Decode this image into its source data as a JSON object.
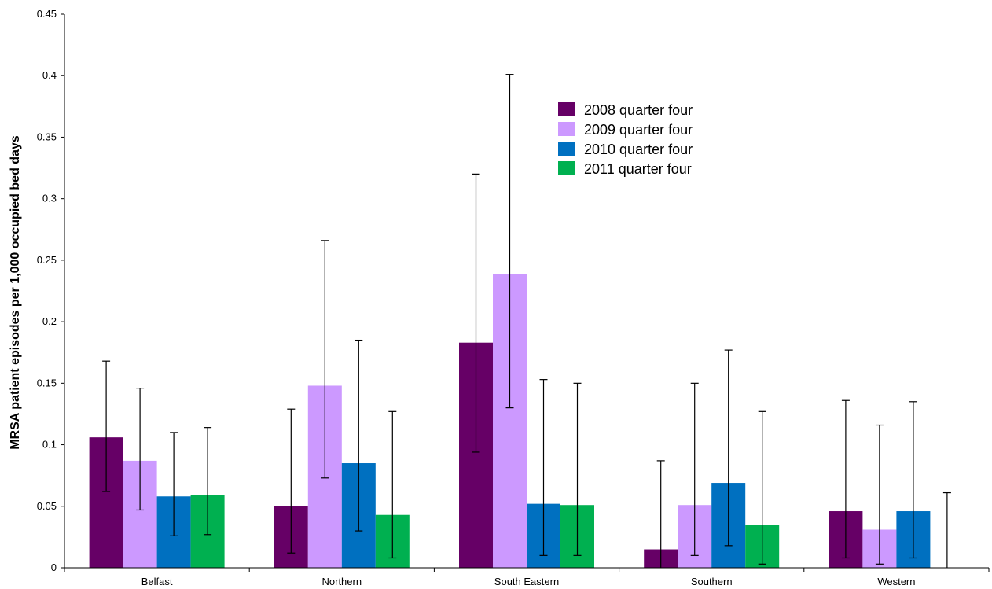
{
  "chart_data": {
    "type": "bar",
    "title": "",
    "xlabel": "",
    "ylabel": "MRSA patient episodes per 1,000 occupied bed days",
    "ylim": [
      0,
      0.45
    ],
    "yticks": [
      "0",
      "0.05",
      "0.1",
      "0.15",
      "0.2",
      "0.25",
      "0.3",
      "0.35",
      "0.4",
      "0.45"
    ],
    "categories": [
      "Belfast",
      "Northern",
      "South Eastern",
      "Southern",
      "Western"
    ],
    "legend_position": "top-right",
    "grid": false,
    "series": [
      {
        "name": "2008 quarter four",
        "color": "#660066",
        "values": [
          0.106,
          0.05,
          0.183,
          0.015,
          0.046
        ],
        "err_low": [
          0.062,
          0.012,
          0.094,
          0.0,
          0.008
        ],
        "err_high": [
          0.168,
          0.129,
          0.32,
          0.087,
          0.136
        ]
      },
      {
        "name": "2009 quarter four",
        "color": "#cc99ff",
        "values": [
          0.087,
          0.148,
          0.239,
          0.051,
          0.031
        ],
        "err_low": [
          0.047,
          0.073,
          0.13,
          0.01,
          0.003
        ],
        "err_high": [
          0.146,
          0.266,
          0.401,
          0.15,
          0.116
        ]
      },
      {
        "name": "2010 quarter four",
        "color": "#0070c0",
        "values": [
          0.058,
          0.085,
          0.052,
          0.069,
          0.046
        ],
        "err_low": [
          0.026,
          0.03,
          0.01,
          0.018,
          0.008
        ],
        "err_high": [
          0.11,
          0.185,
          0.153,
          0.177,
          0.135
        ]
      },
      {
        "name": "2011 quarter four",
        "color": "#00b050",
        "values": [
          0.059,
          0.043,
          0.051,
          0.035,
          0.0
        ],
        "err_low": [
          0.027,
          0.008,
          0.01,
          0.003,
          0.0
        ],
        "err_high": [
          0.114,
          0.127,
          0.15,
          0.127,
          0.061
        ]
      }
    ]
  }
}
